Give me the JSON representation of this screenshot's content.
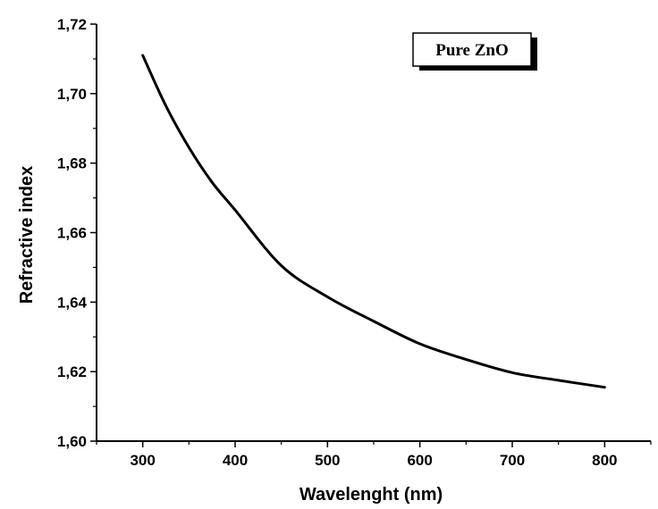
{
  "chart_data": {
    "type": "line",
    "title": "",
    "xlabel": "Wavelenght (nm)",
    "ylabel": "Refractive index",
    "xlim": [
      250,
      850
    ],
    "ylim": [
      1.6,
      1.72
    ],
    "x_ticks": [
      300,
      400,
      500,
      600,
      700,
      800
    ],
    "x_tick_labels": [
      "300",
      "400",
      "500",
      "600",
      "700",
      "800"
    ],
    "y_ticks": [
      1.6,
      1.62,
      1.64,
      1.66,
      1.68,
      1.7,
      1.72
    ],
    "y_tick_labels": [
      "1,60",
      "1,62",
      "1,64",
      "1,66",
      "1,68",
      "1,70",
      "1,72"
    ],
    "grid": false,
    "legend_position": "top-right",
    "series": [
      {
        "name": "Pure ZnO",
        "color": "#000000",
        "x": [
          300,
          325,
          350,
          375,
          400,
          450,
          500,
          550,
          600,
          650,
          700,
          750,
          800
        ],
        "y": [
          1.711,
          1.6965,
          1.6845,
          1.6745,
          1.6665,
          1.6505,
          1.6415,
          1.6345,
          1.628,
          1.6235,
          1.6197,
          1.6175,
          1.6155
        ]
      }
    ]
  }
}
